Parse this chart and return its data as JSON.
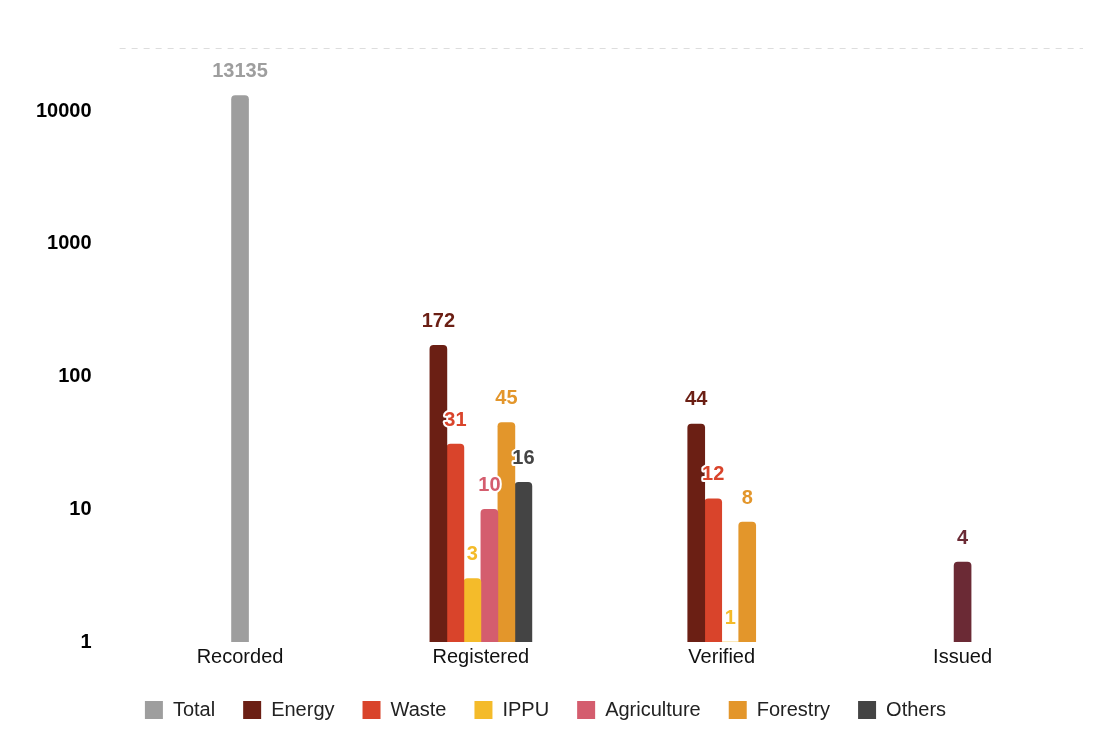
{
  "chart_data": {
    "type": "bar",
    "categories": [
      "Recorded",
      "Registered",
      "Verified",
      "Issued"
    ],
    "series": [
      {
        "name": "Total",
        "color": "#9e9e9e",
        "values": [
          13135,
          null,
          null,
          null
        ]
      },
      {
        "name": "Energy",
        "color": "#6b1f14",
        "colors": [
          "#6b1f14",
          "#6b1f14",
          "#6b1f14",
          "#6b2a35"
        ],
        "values": [
          null,
          172,
          44,
          4
        ]
      },
      {
        "name": "Waste",
        "color": "#d9442b",
        "values": [
          null,
          31,
          12,
          null
        ]
      },
      {
        "name": "IPPU",
        "color": "#f4bb2a",
        "values": [
          null,
          3,
          1,
          null
        ]
      },
      {
        "name": "Agriculture",
        "color": "#d45d6e",
        "values": [
          null,
          10,
          null,
          null
        ]
      },
      {
        "name": "Forestry",
        "color": "#e3962b",
        "values": [
          null,
          45,
          8,
          null
        ]
      },
      {
        "name": "Others",
        "color": "#444444",
        "values": [
          null,
          16,
          null,
          null
        ]
      }
    ],
    "log": "y",
    "ylim": [
      1,
      30000
    ],
    "yticks": [
      1,
      10,
      100,
      1000,
      10000
    ],
    "grid": false,
    "legend": "bottom",
    "data_labels": true
  }
}
